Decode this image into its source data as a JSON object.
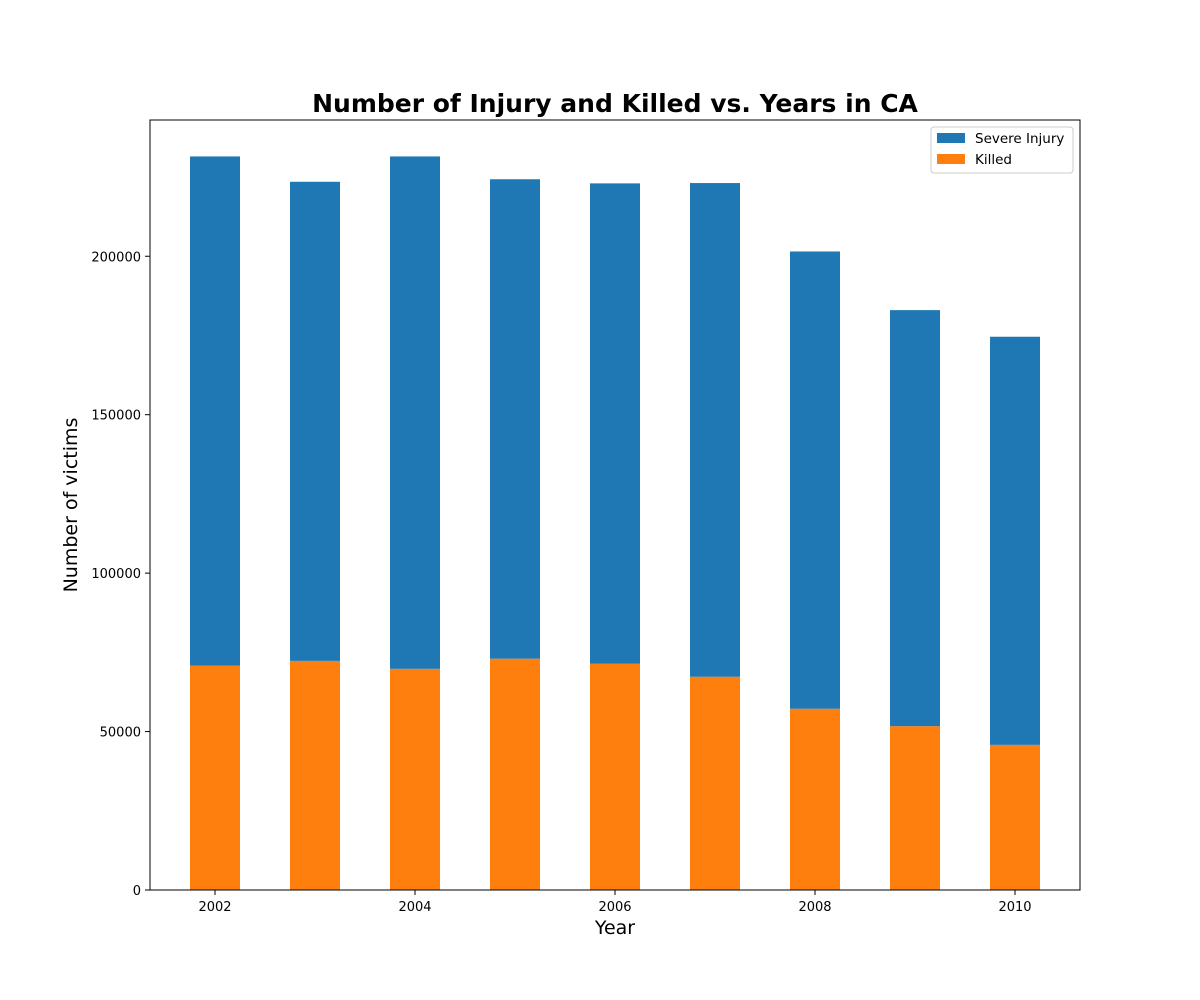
{
  "chart_data": {
    "type": "bar",
    "stacked": true,
    "title": "Number of Injury and Killed vs. Years in CA",
    "xlabel": "Year",
    "ylabel": "Number of victims",
    "x": [
      2002,
      2003,
      2004,
      2005,
      2006,
      2007,
      2008,
      2009,
      2010
    ],
    "xticks": [
      2002,
      2004,
      2006,
      2008,
      2010
    ],
    "yticks": [
      0,
      50000,
      100000,
      150000,
      200000
    ],
    "xlim": [
      2001.35,
      2010.65
    ],
    "ylim": [
      0,
      243000
    ],
    "grid": false,
    "legend_position": "top-right",
    "series": [
      {
        "name": "Killed",
        "color": "#ff7f0e",
        "values": [
          70800,
          72300,
          69800,
          73000,
          71400,
          67300,
          57200,
          51700,
          45800
        ]
      },
      {
        "name": "Severe Injury",
        "color": "#1f77b4",
        "values": [
          160700,
          151200,
          161700,
          151300,
          151600,
          155800,
          144300,
          131300,
          128800
        ]
      }
    ],
    "totals": [
      231500,
      223500,
      231500,
      224300,
      223000,
      223100,
      201500,
      183000,
      174600
    ]
  }
}
